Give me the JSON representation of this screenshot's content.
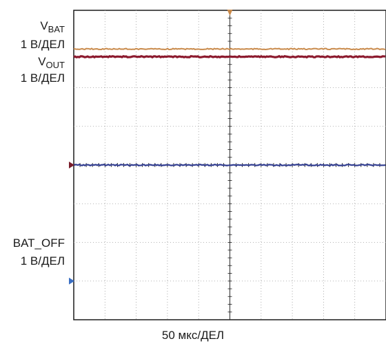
{
  "chart_data": {
    "type": "line",
    "title": "",
    "xlabel": "",
    "ylabel": "",
    "grid": true,
    "grid_divisions": {
      "x": 10,
      "y": 8
    },
    "x_range_div": [
      0,
      10
    ],
    "y_range_div": [
      -4,
      4
    ],
    "time_scale": "50 мкс/ДЕЛ",
    "series": [
      {
        "name": "VBAT",
        "name_main": "V",
        "name_sub": "BAT",
        "scale": "1 В/ДЕЛ",
        "color": "#c98a4b",
        "marker_color": "#c98a4b",
        "ground_div": 0,
        "x": [
          0,
          10
        ],
        "y": [
          3.0,
          3.0
        ]
      },
      {
        "name": "VOUT",
        "name_main": "V",
        "name_sub": "OUT",
        "scale": "1 В/ДЕЛ",
        "color": "#8c1a2e",
        "marker_color": "#7a1d2a",
        "ground_div": 0,
        "x": [
          0,
          10
        ],
        "y": [
          2.8,
          2.8
        ]
      },
      {
        "name": "BAT_OFF",
        "name_main": "BAT_OFF",
        "name_sub": "",
        "scale": "1 В/ДЕЛ",
        "color": "#2f3b8f",
        "marker_color": "#3a6fc4",
        "ground_div": -3,
        "x": [
          0,
          10
        ],
        "y": [
          0.0,
          0.0
        ]
      }
    ]
  }
}
